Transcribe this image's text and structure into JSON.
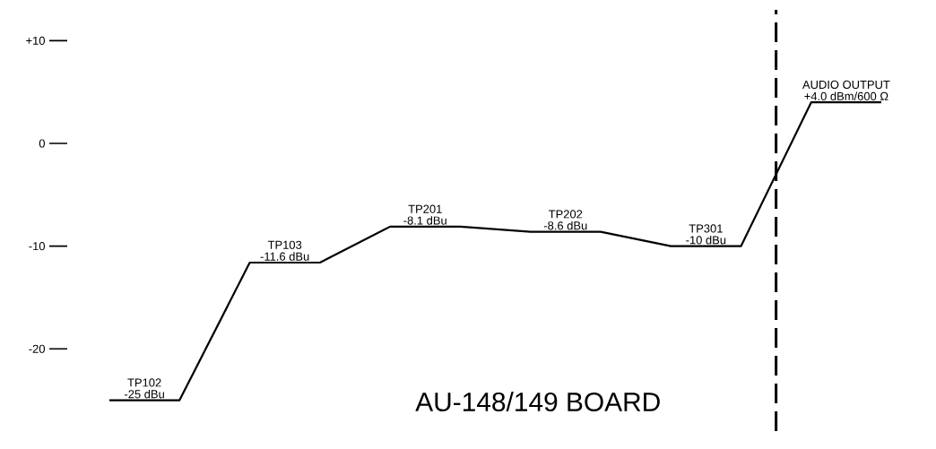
{
  "chart_data": {
    "type": "line",
    "categories": [
      null,
      null,
      null,
      null,
      null,
      null,
      null,
      null,
      null,
      null,
      null,
      null
    ],
    "series": [
      {
        "color": "#000000",
        "values": [
          -25,
          -25,
          -11.6,
          -11.6,
          -8.1,
          -8.1,
          -8.6,
          -8.6,
          -10,
          -10,
          4,
          4
        ],
        "value_labels": [
          "-25 dBu",
          null,
          "-11.6 dBu",
          null,
          "-8.1 dBu",
          null,
          "-8.6 dBu",
          null,
          "-10 dBu",
          null,
          "+4.0 dBm/600 Ω",
          null
        ]
      }
    ],
    "ylim": [
      -28,
      13
    ],
    "yticks": [
      {
        "value": 10,
        "label": "+10"
      },
      0,
      -10,
      -20
    ],
    "annotations": [
      "TP102",
      "TP103",
      "TP201",
      "TP202",
      "TP301",
      "AUDIO OUTPUT",
      "AU-148/149 BOARD"
    ]
  }
}
